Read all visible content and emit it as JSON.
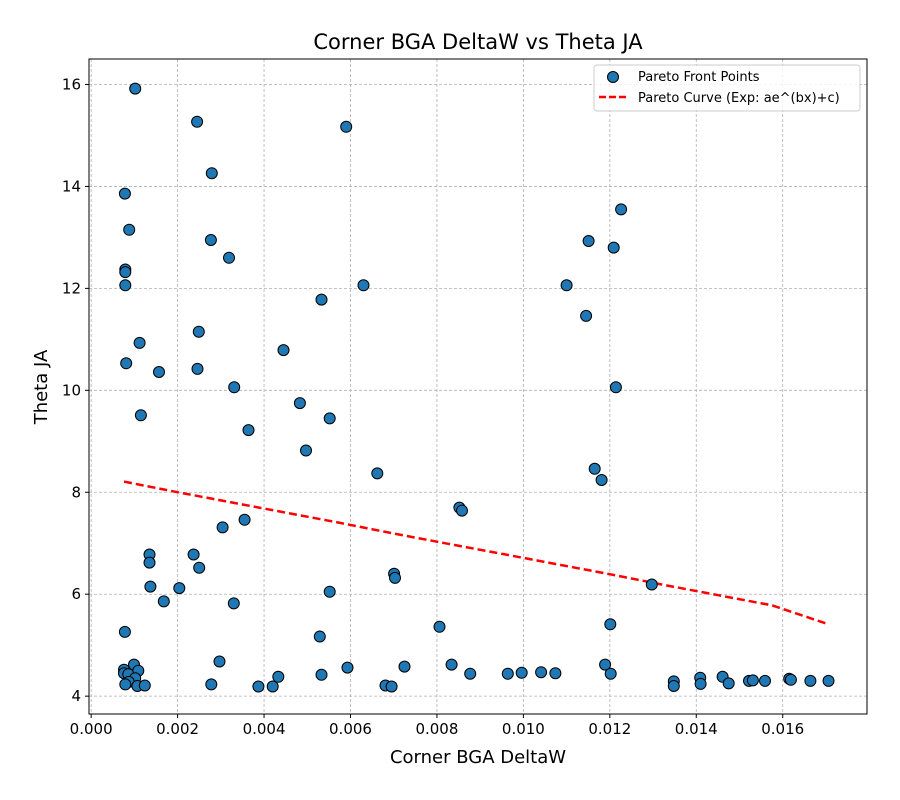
{
  "chart_data": {
    "type": "scatter",
    "title": "Corner BGA DeltaW vs Theta JA",
    "xlabel": "Corner BGA DeltaW",
    "ylabel": "Theta JA",
    "xlim": [
      -5e-05,
      0.01795
    ],
    "ylim": [
      3.65,
      16.5
    ],
    "xticks": [
      0.0,
      0.002,
      0.004,
      0.006,
      0.008,
      0.01,
      0.012,
      0.014,
      0.016
    ],
    "xtick_labels": [
      "0.000",
      "0.002",
      "0.004",
      "0.006",
      "0.008",
      "0.010",
      "0.012",
      "0.014",
      "0.016"
    ],
    "yticks": [
      4,
      6,
      8,
      10,
      12,
      14,
      16
    ],
    "ytick_labels": [
      "4",
      "6",
      "8",
      "10",
      "12",
      "14",
      "16"
    ],
    "grid": true,
    "legend_position": "top-right",
    "series": [
      {
        "name": "Pareto Front Points",
        "kind": "scatter",
        "color": "#1f77b4",
        "edgecolor": "#000000",
        "points": [
          [
            0.00102,
            15.92
          ],
          [
            0.00245,
            15.27
          ],
          [
            0.0059,
            15.17
          ],
          [
            0.00279,
            14.26
          ],
          [
            0.00078,
            13.86
          ],
          [
            0.00088,
            13.15
          ],
          [
            0.01226,
            13.55
          ],
          [
            0.00277,
            12.95
          ],
          [
            0.01151,
            12.93
          ],
          [
            0.01209,
            12.8
          ],
          [
            0.00319,
            12.6
          ],
          [
            0.00079,
            12.37
          ],
          [
            0.00079,
            12.32
          ],
          [
            0.00079,
            12.06
          ],
          [
            0.0063,
            12.06
          ],
          [
            0.011,
            12.06
          ],
          [
            0.00533,
            11.78
          ],
          [
            0.01145,
            11.46
          ],
          [
            0.00249,
            11.15
          ],
          [
            0.00112,
            10.93
          ],
          [
            0.00445,
            10.79
          ],
          [
            0.00081,
            10.53
          ],
          [
            0.00157,
            10.36
          ],
          [
            0.00246,
            10.42
          ],
          [
            0.00331,
            10.06
          ],
          [
            0.01214,
            10.06
          ],
          [
            0.00483,
            9.75
          ],
          [
            0.00115,
            9.51
          ],
          [
            0.00552,
            9.45
          ],
          [
            0.00364,
            9.22
          ],
          [
            0.00497,
            8.82
          ],
          [
            0.00662,
            8.37
          ],
          [
            0.01165,
            8.46
          ],
          [
            0.01181,
            8.24
          ],
          [
            0.00852,
            7.7
          ],
          [
            0.00858,
            7.64
          ],
          [
            0.00355,
            7.46
          ],
          [
            0.00304,
            7.31
          ],
          [
            0.00135,
            6.78
          ],
          [
            0.00237,
            6.78
          ],
          [
            0.00135,
            6.62
          ],
          [
            0.0025,
            6.52
          ],
          [
            0.00701,
            6.4
          ],
          [
            0.00703,
            6.32
          ],
          [
            0.00137,
            6.15
          ],
          [
            0.00204,
            6.12
          ],
          [
            0.01297,
            6.19
          ],
          [
            0.00552,
            6.05
          ],
          [
            0.00168,
            5.86
          ],
          [
            0.0033,
            5.82
          ],
          [
            0.01201,
            5.41
          ],
          [
            0.00806,
            5.36
          ],
          [
            0.00078,
            5.26
          ],
          [
            0.00529,
            5.17
          ],
          [
            0.00297,
            4.68
          ],
          [
            0.00099,
            4.62
          ],
          [
            0.00076,
            4.52
          ],
          [
            0.00076,
            4.45
          ],
          [
            0.00109,
            4.5
          ],
          [
            0.00593,
            4.56
          ],
          [
            0.00725,
            4.58
          ],
          [
            0.00834,
            4.62
          ],
          [
            0.01189,
            4.62
          ],
          [
            0.00086,
            4.43
          ],
          [
            0.00102,
            4.35
          ],
          [
            0.00087,
            4.28
          ],
          [
            0.00107,
            4.2
          ],
          [
            0.00079,
            4.23
          ],
          [
            0.00124,
            4.21
          ],
          [
            0.00278,
            4.23
          ],
          [
            0.00387,
            4.19
          ],
          [
            0.0042,
            4.19
          ],
          [
            0.00433,
            4.38
          ],
          [
            0.00533,
            4.42
          ],
          [
            0.00681,
            4.21
          ],
          [
            0.00695,
            4.19
          ],
          [
            0.00877,
            4.44
          ],
          [
            0.00964,
            4.44
          ],
          [
            0.00996,
            4.46
          ],
          [
            0.01041,
            4.47
          ],
          [
            0.01074,
            4.45
          ],
          [
            0.01202,
            4.44
          ],
          [
            0.01348,
            4.29
          ],
          [
            0.01348,
            4.2
          ],
          [
            0.01409,
            4.36
          ],
          [
            0.0141,
            4.24
          ],
          [
            0.01461,
            4.38
          ],
          [
            0.01475,
            4.25
          ],
          [
            0.01522,
            4.3
          ],
          [
            0.01531,
            4.31
          ],
          [
            0.01559,
            4.3
          ],
          [
            0.01615,
            4.34
          ],
          [
            0.01619,
            4.32
          ],
          [
            0.01664,
            4.3
          ],
          [
            0.01706,
            4.3
          ]
        ]
      },
      {
        "name": "Pareto Curve (Exp: ae^(bx)+c)",
        "kind": "line",
        "color": "#ff0000",
        "style": "dashed",
        "x": [
          0.00076,
          0.00201,
          0.00326,
          0.00451,
          0.00576,
          0.00701,
          0.00826,
          0.00951,
          0.01076,
          0.01201,
          0.01326,
          0.01451,
          0.01576,
          0.01706
        ],
        "y": [
          8.21,
          8.0,
          7.8,
          7.6,
          7.4,
          7.19,
          6.99,
          6.79,
          6.59,
          6.39,
          6.18,
          5.98,
          5.78,
          5.41
        ]
      }
    ]
  }
}
